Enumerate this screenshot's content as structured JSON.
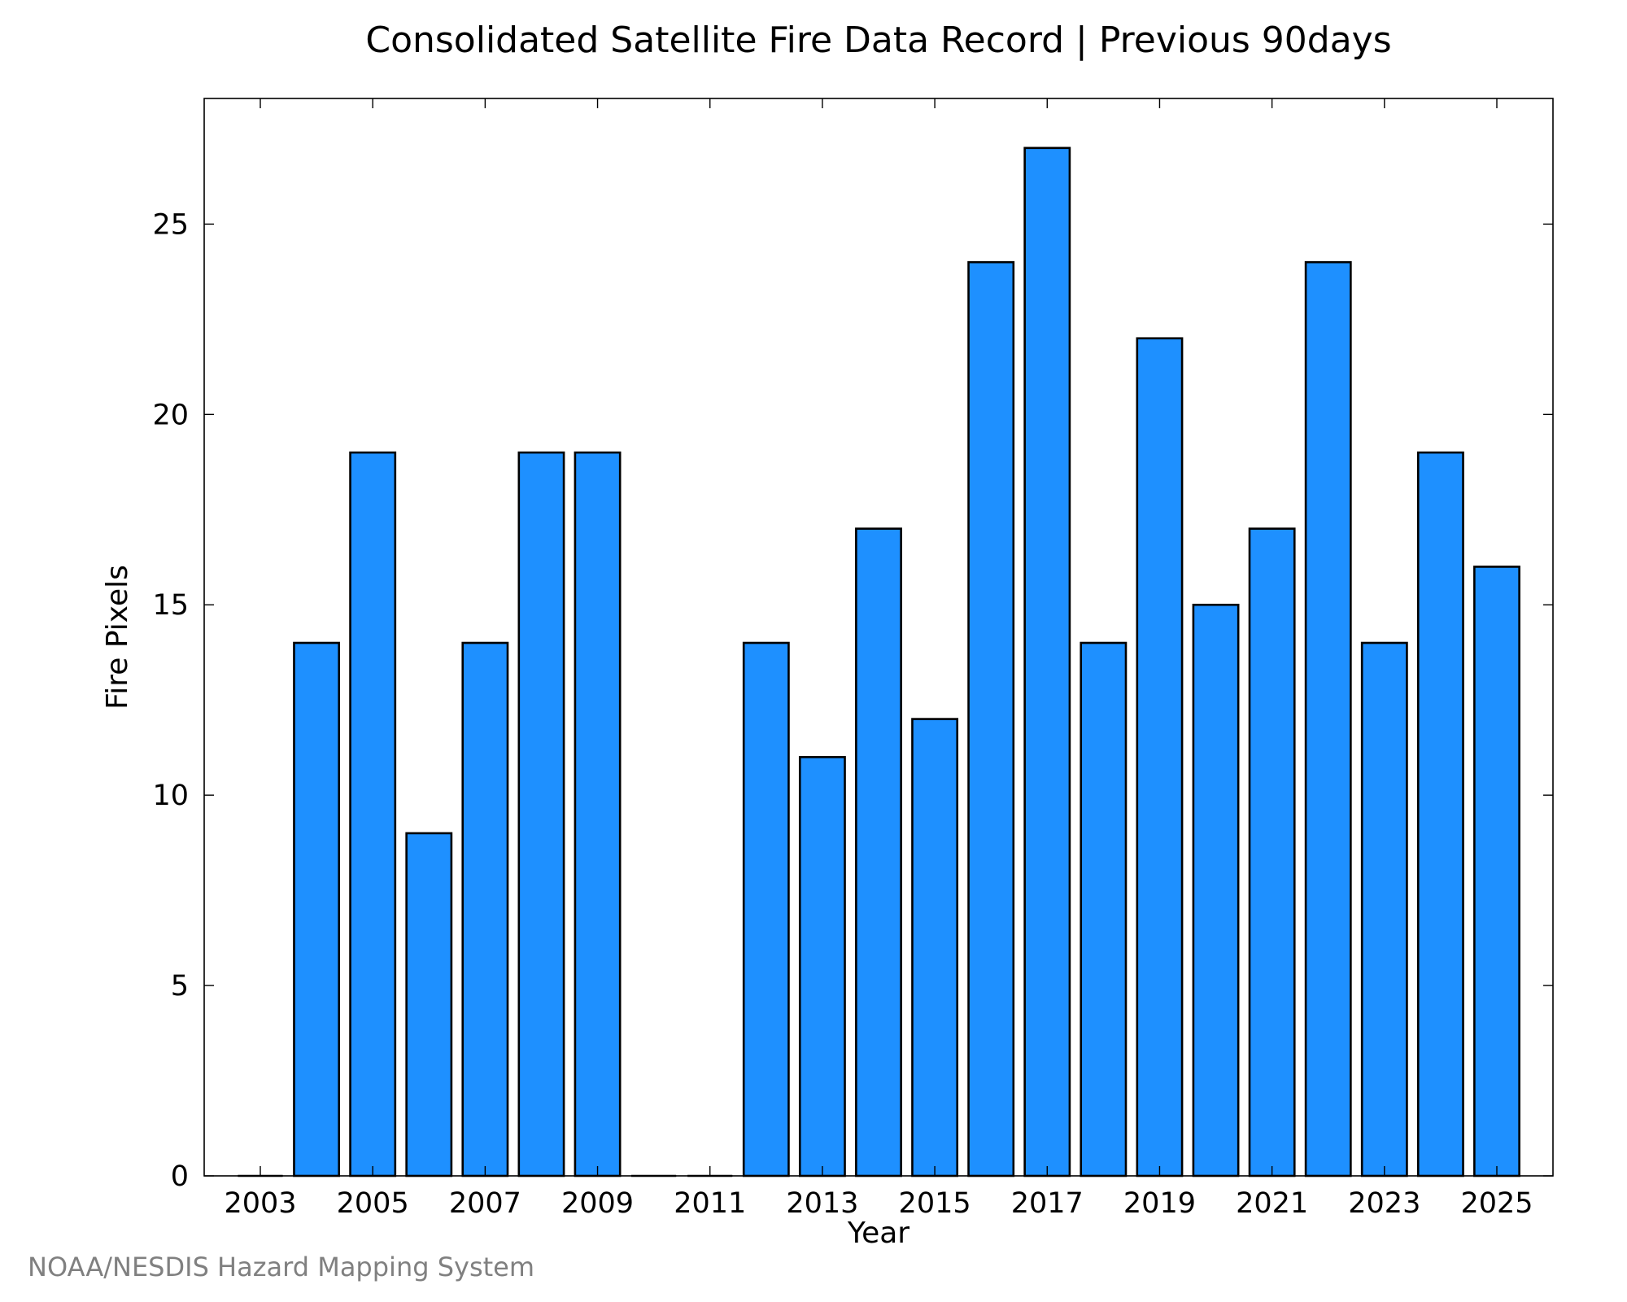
{
  "chart_data": {
    "type": "bar",
    "title": "Consolidated Satellite Fire Data Record | Previous 90days",
    "xlabel": "Year",
    "ylabel": "Fire Pixels",
    "categories": [
      "2003",
      "2004",
      "2005",
      "2006",
      "2007",
      "2008",
      "2009",
      "2010",
      "2011",
      "2012",
      "2013",
      "2014",
      "2015",
      "2016",
      "2017",
      "2018",
      "2019",
      "2020",
      "2021",
      "2022",
      "2023",
      "2024",
      "2025"
    ],
    "values": [
      0,
      14,
      19,
      9,
      14,
      19,
      19,
      0,
      0,
      14,
      11,
      17,
      12,
      24,
      27,
      14,
      22,
      15,
      17,
      24,
      14,
      19,
      16
    ],
    "x_tick_labels": [
      "2003",
      "2005",
      "2007",
      "2009",
      "2011",
      "2013",
      "2015",
      "2017",
      "2019",
      "2021",
      "2023",
      "2025"
    ],
    "y_tick_labels": [
      "0",
      "5",
      "10",
      "15",
      "20",
      "25"
    ],
    "y_ticks": [
      0,
      5,
      10,
      15,
      20,
      25
    ],
    "ylim": [
      0,
      28.3
    ],
    "grid": false,
    "colors": {
      "bar_fill": "#1e90ff",
      "bar_edge": "#000000",
      "frame": "#000000",
      "credit_text": "#808080"
    },
    "credit": "NOAA/NESDIS Hazard Mapping System"
  }
}
